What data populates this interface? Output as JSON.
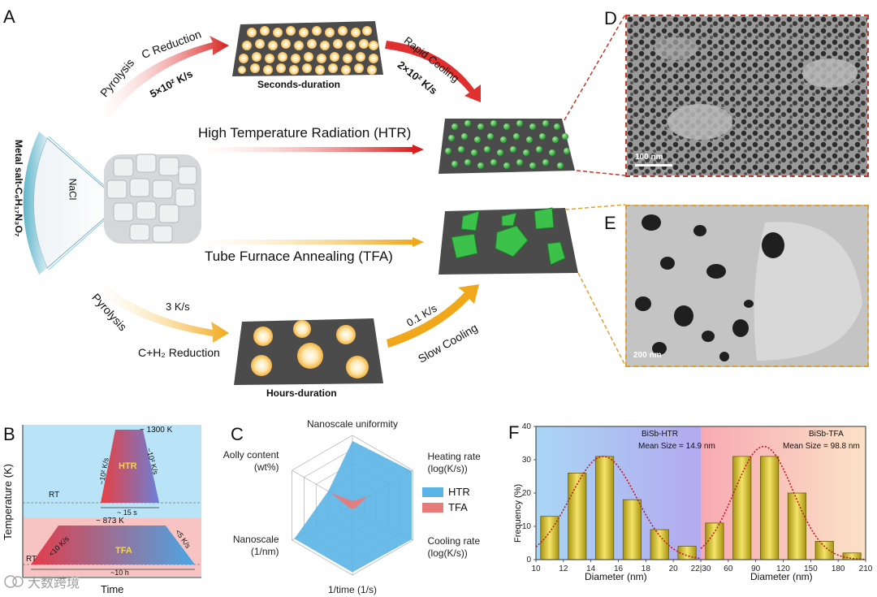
{
  "panel_a": {
    "letter": "A",
    "precursor": "Metal salt-C₆H₁₇N₃O₇",
    "nacl": "NaCl",
    "htr_label": "High Temperature Radiation (HTR)",
    "tfa_label": "Tube Furnace Annealing (TFA)",
    "top_pyrolysis": "Pyrolysis",
    "top_c_reduction": "C Reduction",
    "top_heating_rate": "5×10² K/s",
    "top_rapid_cooling": "Rapid Cooling",
    "top_cooling_rate": "2×10² K/s",
    "seconds_duration": "Seconds-duration",
    "bottom_pyrolysis": "Pyrolysis",
    "bottom_heating_rate": "3 K/s",
    "bottom_reduction": "C+H₂ Reduction",
    "bottom_cooling_rate": "0.1 K/s",
    "bottom_slow_cooling": "Slow Cooling",
    "hours_duration": "Hours-duration"
  },
  "panel_d": {
    "letter": "D",
    "scale": "100 nm"
  },
  "panel_e": {
    "letter": "E",
    "scale": "200 nm"
  },
  "panel_b": {
    "letter": "B",
    "ylabel": "Temperature (K)",
    "xlabel": "Time",
    "rt_top": "RT",
    "rt_bottom": "RT",
    "htr_peak": "~ 1300 K",
    "htr_heat": "~10² K/s",
    "htr_cool": "~10² K/s",
    "htr_name": "HTR",
    "htr_time": "~ 15 s",
    "tfa_peak": "~ 873 K",
    "tfa_heat": "<10 K/s",
    "tfa_cool": "<5 K/s",
    "tfa_name": "TFA",
    "tfa_time": "~10 h",
    "colors": {
      "htr_bg": "#b9e3f6",
      "tfa_bg": "#f8c3c3"
    }
  },
  "panel_c": {
    "letter": "C",
    "legend": [
      "HTR",
      "TFA"
    ]
  },
  "panel_f": {
    "letter": "F",
    "ylabel": "Frequency (%)",
    "xlabel_left": "Diameter (nm)",
    "xlabel_right": "Diameter (nm)",
    "htr_title": "BiSb-HTR",
    "htr_mean": "Mean Size = 14.9 nm",
    "tfa_title": "BiSb-TFA",
    "tfa_mean": "Mean Size = 98.8 nm"
  },
  "watermark": "大数跨境",
  "chart_data": [
    {
      "type": "radar",
      "axes": [
        "Nanoscale uniformity",
        "Heating rate\n(log(K/s))",
        "Cooling rate\n(log(K/s))",
        "1/time (1/s)",
        "Nanoscale\n(1/nm)",
        "Aolly content\n(wt%)"
      ],
      "rmax": 5,
      "series": [
        {
          "name": "HTR",
          "values": [
            4.6,
            4.9,
            4.9,
            4.8,
            4.8,
            2.0
          ],
          "color": "#5ab4e5"
        },
        {
          "name": "TFA",
          "values": [
            0.3,
            1.2,
            0.3,
            0.3,
            0.3,
            1.8
          ],
          "color": "#e97a7a"
        }
      ]
    },
    {
      "type": "bar",
      "title": "BiSb-HTR",
      "xlabel": "Diameter (nm)",
      "ylabel": "Frequency (%)",
      "x": [
        11,
        13,
        15,
        17,
        19,
        21
      ],
      "values": [
        13,
        26,
        31,
        18,
        9,
        4
      ],
      "xticks": [
        10,
        12,
        14,
        16,
        18,
        20,
        22
      ],
      "xlim": [
        10,
        22
      ],
      "ylim": [
        0,
        40
      ],
      "yticks": [
        0,
        10,
        20,
        30,
        40
      ],
      "fit": {
        "type": "gaussian",
        "mean": 14.9,
        "sigma": 2.4,
        "peak": 31
      }
    },
    {
      "type": "bar",
      "title": "BiSb-TFA",
      "xlabel": "Diameter (nm)",
      "ylabel": "Frequency (%)",
      "x": [
        45,
        75,
        105,
        135,
        165,
        195
      ],
      "values": [
        11,
        31,
        31,
        20,
        5.5,
        2
      ],
      "xticks": [
        30,
        60,
        90,
        120,
        150,
        180,
        210
      ],
      "xlim": [
        30,
        210
      ],
      "ylim": [
        0,
        40
      ],
      "fit": {
        "type": "gaussian",
        "mean": 98.8,
        "sigma": 32,
        "peak": 34
      }
    }
  ]
}
